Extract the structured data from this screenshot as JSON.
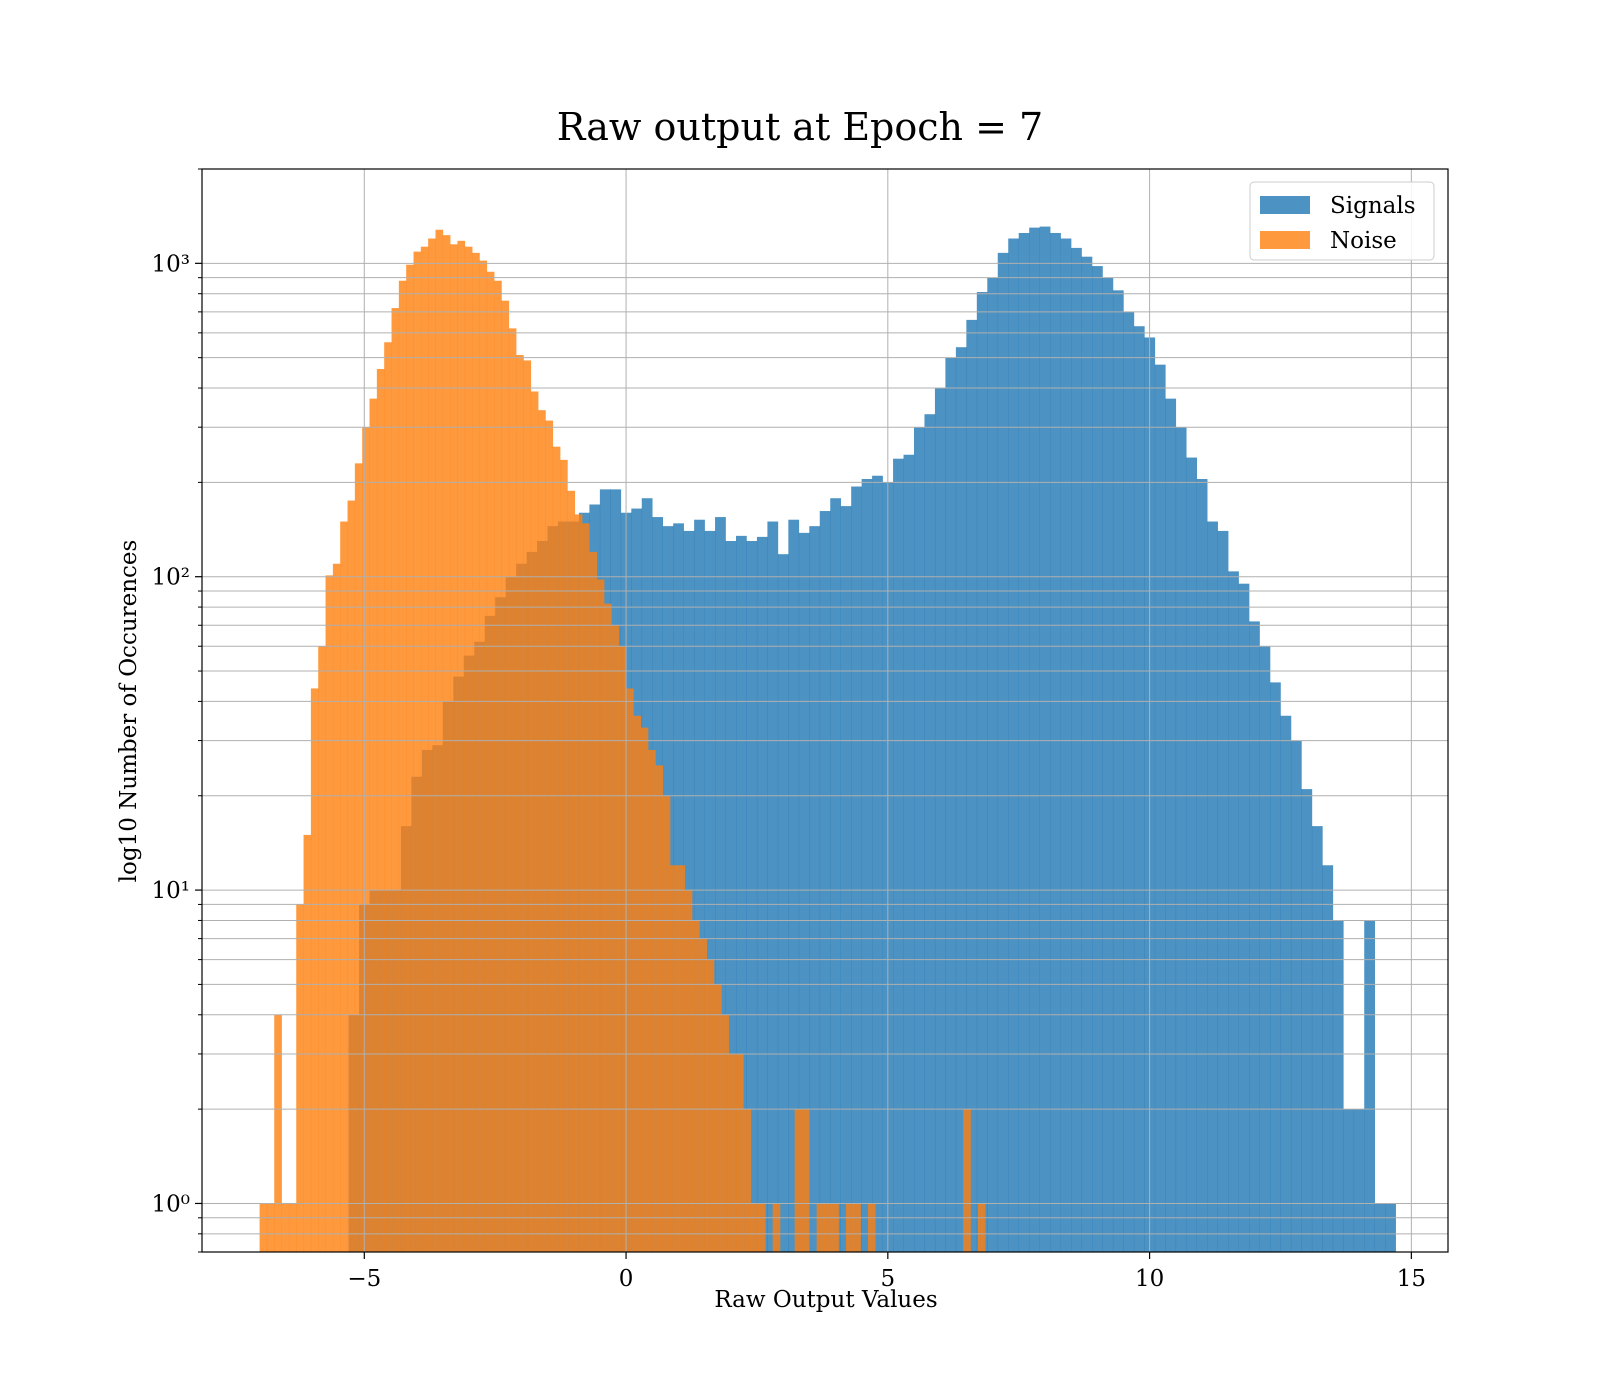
{
  "chart_data": {
    "type": "bar",
    "title": "Raw output at Epoch = 7",
    "xlabel": "Raw Output Values",
    "ylabel": "log10 Number of Occurences",
    "xlim": [
      -8.1,
      15.7
    ],
    "ylim": [
      0.7,
      2000
    ],
    "yscale": "log",
    "xticks": [
      -5,
      0,
      5,
      10,
      15
    ],
    "xtick_labels": [
      "−5",
      "0",
      "5",
      "10",
      "15"
    ],
    "yticks": [
      1,
      10,
      100,
      1000
    ],
    "ytick_labels": [
      "10⁰",
      "10¹",
      "10²",
      "10³"
    ],
    "grid": true,
    "legend": "upper-right",
    "series": [
      {
        "name": "Signals",
        "color": "#1f77b4",
        "opacity": 0.8,
        "bin_start": -5.3,
        "bin_width": 0.2,
        "counts": [
          4,
          9,
          10,
          10,
          10,
          16,
          23,
          28,
          29,
          40,
          48,
          56,
          62,
          75,
          86,
          100,
          110,
          120,
          130,
          145,
          150,
          150,
          160,
          170,
          190,
          190,
          160,
          165,
          178,
          155,
          145,
          148,
          140,
          152,
          140,
          155,
          130,
          135,
          130,
          134,
          150,
          118,
          152,
          138,
          145,
          162,
          178,
          168,
          194,
          205,
          210,
          200,
          238,
          245,
          300,
          330,
          400,
          500,
          540,
          660,
          810,
          900,
          1080,
          1200,
          1250,
          1300,
          1310,
          1250,
          1200,
          1120,
          1050,
          980,
          900,
          820,
          700,
          630,
          580,
          475,
          370,
          300,
          240,
          205,
          150,
          140,
          104,
          95,
          72,
          60,
          46,
          36,
          30,
          21,
          16,
          12,
          8,
          2,
          2,
          8,
          1,
          1
        ]
      },
      {
        "name": "Noise",
        "color": "#ff7f0e",
        "opacity": 0.8,
        "bin_start": -7.0,
        "bin_width": 0.14,
        "counts": [
          1,
          1,
          4,
          1,
          1,
          9,
          15,
          44,
          60,
          101,
          110,
          150,
          175,
          230,
          300,
          370,
          460,
          560,
          720,
          880,
          990,
          1090,
          1130,
          1200,
          1280,
          1230,
          1150,
          1180,
          1130,
          1080,
          1020,
          940,
          880,
          760,
          620,
          510,
          490,
          390,
          340,
          315,
          260,
          236,
          188,
          158,
          148,
          120,
          98,
          82,
          70,
          60,
          44,
          36,
          33,
          28,
          25,
          20,
          12,
          12,
          10,
          8,
          7,
          6,
          5,
          4,
          3,
          3,
          2,
          1,
          1,
          0,
          1,
          0,
          0,
          2,
          2,
          0,
          1,
          1,
          1,
          0,
          1,
          1,
          0,
          1,
          0,
          0,
          0,
          0,
          0,
          0,
          0,
          0,
          0,
          0,
          0,
          0,
          2,
          0,
          1
        ]
      }
    ]
  }
}
